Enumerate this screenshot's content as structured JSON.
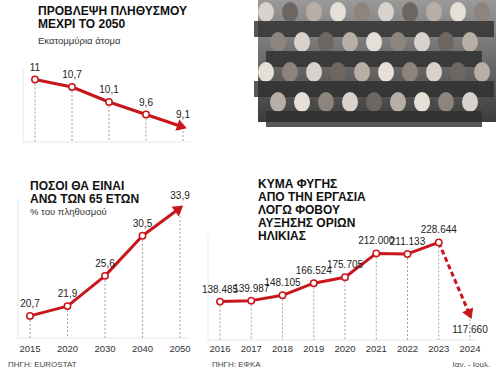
{
  "chart_data": [
    {
      "type": "line",
      "title": "ΠΡΟΒΛΕΨΗ ΠΛΗΘΥΣΜΟΥ\nΜΕΧΡΙ ΤΟ 2050",
      "subtitle": "Εκατομμύρια άτομα",
      "categories": [
        null,
        null,
        null,
        null,
        null
      ],
      "values": [
        11,
        10.7,
        10.1,
        9.6,
        9.1
      ],
      "value_labels": [
        "11",
        "10,7",
        "10,1",
        "9,6",
        "9,1"
      ],
      "color": "#c8161d",
      "ylim": [
        8.5,
        11.5
      ],
      "yticks": [],
      "grid": false,
      "data_labels": true,
      "tick_labels": false,
      "marker": "circle",
      "line_style": "solid"
    },
    {
      "type": "line",
      "title": "ΠΟΣΟΙ ΘΑ ΕΙΝΑΙ\nΑΝΩ ΤΩΝ 65 ΕΤΩΝ",
      "subtitle": "% του πληθυσμού",
      "categories": [
        "2015",
        "2020",
        "2030",
        "2040",
        "2050"
      ],
      "values": [
        20.7,
        21.9,
        25.6,
        30.5,
        33.9
      ],
      "value_labels": [
        "20,7",
        "21,9",
        "25,6",
        "30,5",
        "33,9"
      ],
      "color": "#c8161d",
      "ylim": [
        18,
        35
      ],
      "yticks": [],
      "grid": false,
      "data_labels": true,
      "tick_labels": "x",
      "marker": "circle",
      "line_style": "solid",
      "annotations": [
        "ΠΗΓΗ: EUROSTAT"
      ]
    },
    {
      "type": "line",
      "title": "ΚΥΜΑ ΦΥΓΗΣ\nΑΠΟ ΤΗΝ ΕΡΓΑΣΙΑ\nΛΟΓΩ ΦΟΒΟΥ\nΑΥΞΗΣΗΣ ΟΡΙΩΝ\nΗΛΙΚΙΑΣ",
      "categories": [
        "2016",
        "2017",
        "2018",
        "2019",
        "2020",
        "2021",
        "2022",
        "2023",
        "2024"
      ],
      "values": [
        138485,
        139987,
        148105,
        166524,
        175705,
        212000,
        211133,
        228644,
        117660
      ],
      "value_labels": [
        "138.485",
        "139.987",
        "148.105",
        "166.524",
        "175.705",
        "212.000",
        "211.133",
        "228.644",
        "117.660"
      ],
      "color": "#c8161d",
      "ylim": [
        80000,
        240000
      ],
      "yticks": [],
      "grid": false,
      "data_labels": true,
      "tick_labels": "x",
      "marker": "circle",
      "line_style": "solid",
      "annotations": [
        "ΠΗΓΗ: ΕΦΚΑ",
        "Ιαν. - Ιουλ."
      ]
    }
  ]
}
